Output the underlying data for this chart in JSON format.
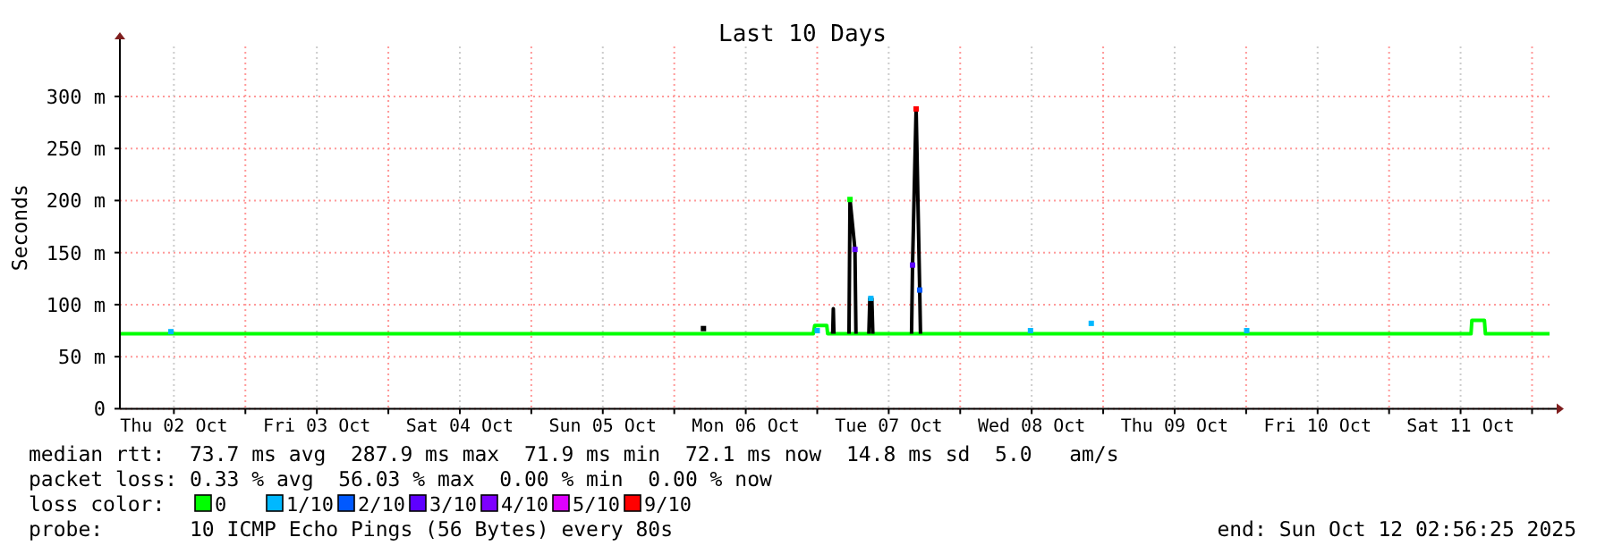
{
  "chart_data": {
    "type": "line",
    "title": "Last 10 Days",
    "ylabel": "Seconds",
    "legend_title": "loss color:",
    "legend": "bottom",
    "grid": true,
    "xlim": [
      "2025-10-02T02:56",
      "2025-10-12T02:56"
    ],
    "xticks": [
      {
        "value": "2025-10-03T00:00",
        "label": null
      },
      {
        "value": "2025-10-04T00:00",
        "label": null
      },
      {
        "value": "2025-10-05T00:00",
        "label": null
      },
      {
        "value": "2025-10-06T00:00",
        "label": null
      },
      {
        "value": "2025-10-07T00:00",
        "label": null
      },
      {
        "value": "2025-10-08T00:00",
        "label": null
      },
      {
        "value": "2025-10-09T00:00",
        "label": null
      },
      {
        "value": "2025-10-10T00:00",
        "label": null
      },
      {
        "value": "2025-10-11T00:00",
        "label": null
      },
      {
        "value": "2025-10-12T00:00",
        "label": null
      },
      {
        "value": "2025-10-02T12:00",
        "label": "Thu 02 Oct"
      },
      {
        "value": "2025-10-03T12:00",
        "label": "Fri 03 Oct"
      },
      {
        "value": "2025-10-04T12:00",
        "label": "Sat 04 Oct"
      },
      {
        "value": "2025-10-05T12:00",
        "label": "Sun 05 Oct"
      },
      {
        "value": "2025-10-06T12:00",
        "label": "Mon 06 Oct"
      },
      {
        "value": "2025-10-07T12:00",
        "label": "Tue 07 Oct"
      },
      {
        "value": "2025-10-08T12:00",
        "label": "Wed 08 Oct"
      },
      {
        "value": "2025-10-09T12:00",
        "label": "Thu 09 Oct"
      },
      {
        "value": "2025-10-10T12:00",
        "label": "Fri 10 Oct"
      },
      {
        "value": "2025-10-11T12:00",
        "label": "Sat 11 Oct"
      }
    ],
    "ylim": [
      0,
      348
    ],
    "yticks": [
      0,
      {
        "value": 50,
        "label": "50 m"
      },
      {
        "value": 100,
        "label": "100 m"
      },
      {
        "value": 150,
        "label": "150 m"
      },
      {
        "value": 200,
        "label": "200 m"
      },
      {
        "value": 250,
        "label": "250 m"
      },
      {
        "value": 300,
        "label": "300 m"
      }
    ],
    "series": [
      {
        "name": "0",
        "color": "#00ff00",
        "x": [
          "2025-10-02T02:56",
          "2025-10-06T23:20",
          "2025-10-06T23:35",
          "2025-10-07T01:36",
          "2025-10-07T01:45",
          "2025-10-11T13:45",
          "2025-10-11T13:54",
          "2025-10-11T16:00",
          "2025-10-11T16:10",
          "2025-10-12T02:56"
        ],
        "values": [
          72,
          72,
          80,
          80,
          72,
          72,
          85,
          85,
          72,
          72
        ]
      },
      {
        "color": "#000000",
        "x": [
          "2025-10-07T02:36",
          "2025-10-07T02:42",
          "2025-10-07T02:48",
          "2025-10-07T03:00",
          "2025-10-07T05:20",
          "2025-10-07T05:30",
          "2025-10-07T06:20",
          "2025-10-07T06:30",
          "2025-10-07T07:00",
          "2025-10-07T08:40",
          "2025-10-07T08:50",
          "2025-10-07T09:10",
          "2025-10-07T09:20",
          "2025-10-07T10:00",
          "2025-10-07T15:50",
          "2025-10-07T16:00",
          "2025-10-07T16:36",
          "2025-10-07T17:12",
          "2025-10-07T17:20"
        ],
        "values": [
          72,
          96,
          72,
          null,
          72,
          201,
          153,
          72,
          null,
          72,
          106,
          106,
          72,
          null,
          72,
          138,
          288,
          114,
          72
        ]
      },
      {
        "type": "scatter",
        "marker": "square",
        "color": "#000000",
        "x": [
          "2025-10-06T04:54"
        ],
        "values": [
          77
        ]
      },
      {
        "type": "scatter",
        "marker": "square",
        "color": "#00ff00",
        "x": [
          "2025-10-07T05:30"
        ],
        "values": [
          201
        ]
      },
      {
        "name": "1/10",
        "type": "scatter",
        "marker": "square",
        "color": "#00b8ff",
        "x": [
          "2025-10-02T11:30",
          "2025-10-07T00:00",
          "2025-10-07T09:00",
          "2025-10-08T11:48",
          "2025-10-08T22:00",
          "2025-10-10T00:06"
        ],
        "values": [
          74,
          75,
          106,
          75,
          82,
          75
        ]
      },
      {
        "name": "2/10",
        "type": "scatter",
        "marker": "square",
        "color": "#0059ff",
        "x": [
          "2025-10-07T17:12"
        ],
        "values": [
          114
        ]
      },
      {
        "name": "3/10",
        "type": "scatter",
        "marker": "square",
        "color": "#5e00ff",
        "x": [
          "2025-10-07T06:20",
          "2025-10-07T16:00"
        ],
        "values": [
          153,
          138
        ]
      },
      {
        "name": "4/10",
        "type": "scatter",
        "color": "#7e00ff"
      },
      {
        "name": "5/10",
        "type": "scatter",
        "color": "#dd00ff"
      },
      {
        "name": "9/10",
        "type": "scatter",
        "marker": "square",
        "color": "#ff0000",
        "x": [
          "2025-10-07T16:36"
        ],
        "values": [
          288
        ]
      }
    ],
    "annotations": [
      "median rtt:  73.7 ms avg  287.9 ms max  71.9 ms min  72.1 ms now  14.8 ms sd  5.0   am/s",
      "packet loss: 0.33 % avg  56.03 % max  0.00 % min  0.00 % now",
      "probe:       10 ICMP Echo Pings (56 Bytes) every 80s",
      "end: Sun Oct 12 02:56:25 2025"
    ]
  }
}
